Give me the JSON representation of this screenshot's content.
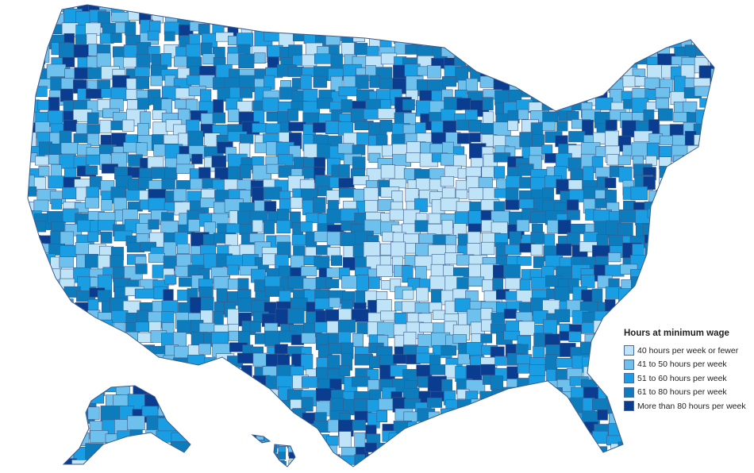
{
  "legend": {
    "title": "Hours at minimum wage",
    "items": [
      {
        "label": "40 hours per week or fewer",
        "color": "#bfe3f7"
      },
      {
        "label": "41 to 50 hours per week",
        "color": "#6ec1ec"
      },
      {
        "label": "51 to 60 hours per week",
        "color": "#1a9ee3"
      },
      {
        "label": "61 to 80 hours per week",
        "color": "#0d7cbd"
      },
      {
        "label": "More than 80 hours per week",
        "color": "#0a3d8f"
      }
    ]
  },
  "colors": {
    "county_border": "#3b5a8a",
    "background": "#ffffff"
  }
}
